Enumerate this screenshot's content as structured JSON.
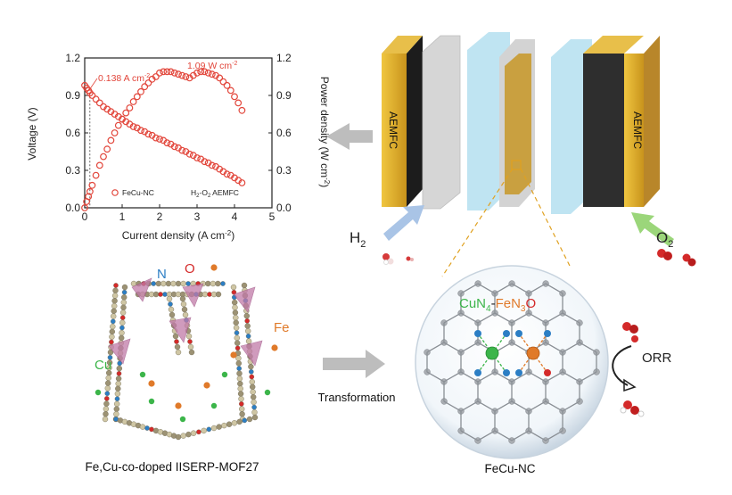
{
  "chart_data": {
    "type": "scatter",
    "xlabel": "Current density (A cm",
    "xlabel_sup": "-2",
    "xlabel_end": ")",
    "ylabel_left": "Voltage (V)",
    "ylabel_right": "Power density (W cm",
    "ylabel_right_sup": "-2",
    "ylabel_right_end": ")",
    "xlim": [
      0,
      5
    ],
    "ylim_left": [
      0,
      1.2
    ],
    "ylim_right": [
      0,
      1.2
    ],
    "xticks": [
      "0",
      "1",
      "2",
      "3",
      "4",
      "5"
    ],
    "yticks_left": [
      "0.0",
      "0.3",
      "0.6",
      "0.9",
      "1.2"
    ],
    "yticks_right": [
      "0.0",
      "0.3",
      "0.6",
      "0.9",
      "1.2"
    ],
    "legend": "FeCu-NC",
    "condition_label": "H",
    "condition_sub1": "2",
    "condition_mid": "-O",
    "condition_sub2": "2",
    "condition_end": " AEMFC",
    "annotation_current": "0.138 A cm",
    "annotation_current_sup": "-2",
    "annotation_power": "1.09 W cm",
    "annotation_power_sup": "-2",
    "series": [
      {
        "name": "Voltage",
        "axis": "left",
        "x": [
          0.0,
          0.05,
          0.1,
          0.14,
          0.2,
          0.3,
          0.4,
          0.5,
          0.6,
          0.7,
          0.8,
          0.9,
          1.0,
          1.1,
          1.2,
          1.3,
          1.4,
          1.5,
          1.6,
          1.7,
          1.8,
          1.9,
          2.0,
          2.1,
          2.2,
          2.3,
          2.4,
          2.5,
          2.6,
          2.7,
          2.8,
          2.9,
          3.0,
          3.1,
          3.2,
          3.3,
          3.4,
          3.5,
          3.6,
          3.7,
          3.8,
          3.9,
          4.0,
          4.1,
          4.2
        ],
        "y": [
          0.98,
          0.96,
          0.94,
          0.92,
          0.9,
          0.87,
          0.84,
          0.81,
          0.79,
          0.77,
          0.75,
          0.73,
          0.71,
          0.69,
          0.67,
          0.65,
          0.64,
          0.62,
          0.61,
          0.59,
          0.58,
          0.56,
          0.55,
          0.54,
          0.52,
          0.51,
          0.49,
          0.48,
          0.46,
          0.45,
          0.43,
          0.42,
          0.4,
          0.39,
          0.37,
          0.36,
          0.34,
          0.33,
          0.31,
          0.29,
          0.27,
          0.26,
          0.24,
          0.22,
          0.2
        ]
      },
      {
        "name": "Power density",
        "axis": "right",
        "x": [
          0.0,
          0.05,
          0.1,
          0.14,
          0.2,
          0.3,
          0.4,
          0.5,
          0.6,
          0.7,
          0.8,
          0.9,
          1.0,
          1.1,
          1.2,
          1.3,
          1.4,
          1.5,
          1.6,
          1.7,
          1.8,
          1.9,
          2.0,
          2.1,
          2.2,
          2.3,
          2.4,
          2.5,
          2.6,
          2.7,
          2.8,
          2.9,
          3.0,
          3.1,
          3.2,
          3.3,
          3.4,
          3.5,
          3.6,
          3.7,
          3.8,
          3.9,
          4.0,
          4.1,
          4.2
        ],
        "y": [
          0.0,
          0.05,
          0.09,
          0.13,
          0.18,
          0.26,
          0.34,
          0.41,
          0.47,
          0.54,
          0.6,
          0.66,
          0.71,
          0.76,
          0.8,
          0.85,
          0.89,
          0.93,
          0.97,
          1.0,
          1.03,
          1.05,
          1.08,
          1.09,
          1.09,
          1.09,
          1.08,
          1.07,
          1.06,
          1.05,
          1.04,
          1.06,
          1.08,
          1.09,
          1.09,
          1.08,
          1.07,
          1.06,
          1.04,
          1.01,
          0.98,
          0.94,
          0.89,
          0.84,
          0.78
        ]
      }
    ]
  },
  "fuel_cell": {
    "left_electrode": "AEMFC",
    "right_electrode": "AEMFC",
    "fuel": "H",
    "fuel_sub": "2",
    "oxidant": "O",
    "oxidant_sub": "2"
  },
  "mof": {
    "label_n": "N",
    "label_o": "O",
    "label_fe": "Fe",
    "label_cu": "Cu",
    "caption": "Fe,Cu-co-doped IISERP-MOF27"
  },
  "process": {
    "arrow_label": "Transformation"
  },
  "catalyst": {
    "site_part1": "CuN",
    "site_sub1": "4",
    "site_dash": "-",
    "site_part2": "FeN",
    "site_sub2": "3",
    "site_part3": "O",
    "reaction": "ORR",
    "caption": "FeCu-NC"
  },
  "colors": {
    "chart_red": "#e2463b",
    "electrode_gold": "#c89a30",
    "membrane_blue": "#bfe4f2",
    "flow_arrow_gray": "#bdbdbd",
    "h2_arrow_blue": "#a9c4e6",
    "o2_arrow_green": "#9bd67a",
    "cu_green": "#3cb54a",
    "fe_orange": "#e07a2a",
    "oxygen_red": "#d42a2a",
    "nitrogen_blue": "#2c7ec4"
  }
}
